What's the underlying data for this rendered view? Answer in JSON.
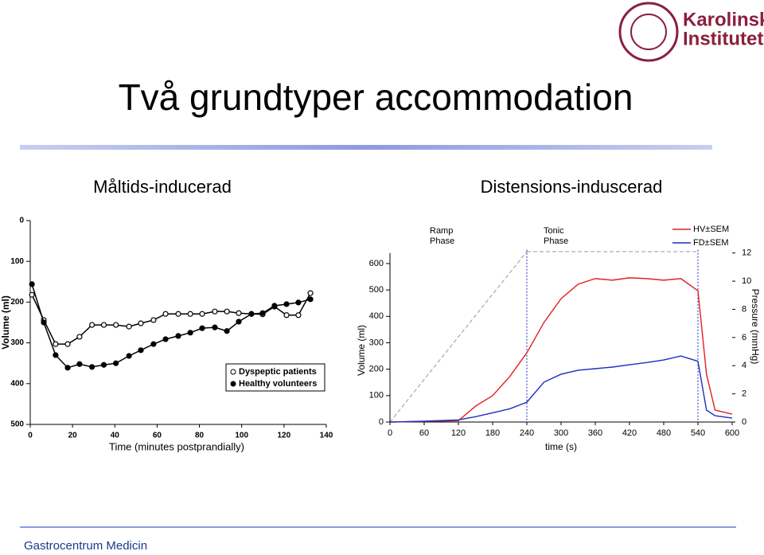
{
  "slide": {
    "title": "Två grundtyper accommodation",
    "subtitles": [
      "Måltids-inducerad",
      "Distensions-induscerad"
    ],
    "logo_lines": [
      "Karolinska",
      "Institutet"
    ],
    "footer": "Gastrocentrum Medicin"
  },
  "chart_data": [
    {
      "type": "line",
      "x_label": "Time (minutes postprandially)",
      "y_label": "Volume (ml)",
      "xlim": [
        0,
        140
      ],
      "xticks": [
        0,
        20,
        40,
        60,
        80,
        100,
        120,
        140
      ],
      "ylim": [
        500,
        0
      ],
      "yticks": [
        0,
        100,
        200,
        300,
        400,
        500
      ],
      "x": [
        0.8,
        6.4,
        12.0,
        17.7,
        23.3,
        29.2,
        34.8,
        40.5,
        46.7,
        52.3,
        58.3,
        64.0,
        70.0,
        75.7,
        81.3,
        87.3,
        93.0,
        98.6,
        104.6,
        109.9,
        115.5,
        121.2,
        126.8,
        132.5
      ],
      "series": [
        {
          "name": "Dyspeptic patients",
          "color": "#000000",
          "marker": "open",
          "values": [
            182,
            244,
            303,
            303,
            285,
            256,
            256,
            256,
            260,
            252,
            244,
            229,
            229,
            229,
            229,
            223,
            223,
            227,
            229,
            230,
            211,
            232,
            232,
            178
          ]
        },
        {
          "name": "Healthy volunteers",
          "color": "#000000",
          "marker": "filled",
          "values": [
            156,
            250,
            330,
            361,
            352,
            359,
            354,
            350,
            332,
            318,
            303,
            291,
            283,
            275,
            264,
            262,
            271,
            248,
            229,
            227,
            209,
            205,
            201,
            193
          ]
        }
      ]
    },
    {
      "type": "line",
      "x_label": "time (s)",
      "y_label": "Volume (ml)",
      "y2_label": "Pressure (mmHg)",
      "xlim": [
        0,
        600
      ],
      "xticks": [
        0,
        60,
        120,
        180,
        240,
        300,
        360,
        420,
        480,
        540,
        600
      ],
      "ylim": [
        0,
        640
      ],
      "yticks": [
        0,
        100,
        200,
        300,
        400,
        500,
        600
      ],
      "y2lim": [
        0,
        12
      ],
      "y2ticks": [
        0,
        2,
        4,
        6,
        8,
        10,
        12
      ],
      "phase_lines": [
        240,
        540
      ],
      "annotations": [
        [
          "Ramp",
          "Phase"
        ],
        [
          "Tonic",
          "Phase"
        ]
      ],
      "x": [
        0,
        60,
        120,
        150,
        180,
        210,
        240,
        270,
        300,
        330,
        360,
        390,
        420,
        450,
        480,
        510,
        540,
        555,
        570,
        600
      ],
      "series": [
        {
          "name": "HV±SEM",
          "color": "#e02020",
          "values": [
            0,
            2,
            5,
            60,
            100,
            172,
            262,
            377,
            467,
            522,
            543,
            537,
            546,
            543,
            537,
            543,
            497,
            181,
            45,
            30
          ]
        },
        {
          "name": "FD±SEM",
          "color": "#1a2fc0",
          "values": [
            0,
            3,
            8,
            20,
            35,
            50,
            75,
            151,
            181,
            196,
            202,
            208,
            217,
            225,
            235,
            250,
            230,
            45,
            24,
            15
          ]
        }
      ]
    }
  ]
}
